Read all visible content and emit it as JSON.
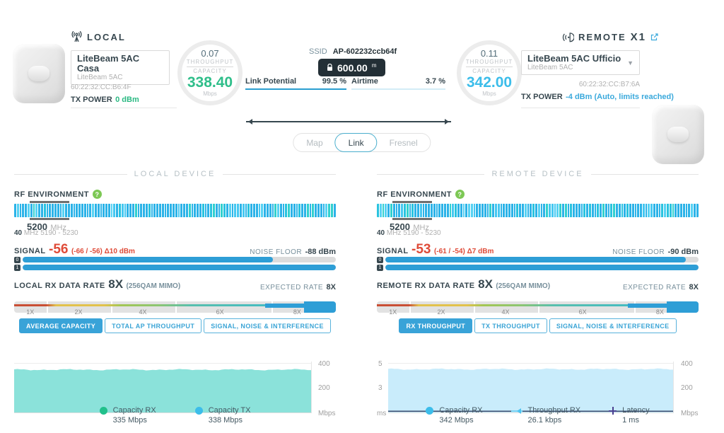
{
  "top": {
    "local": {
      "label": "LOCAL",
      "name": "LiteBeam 5AC Casa",
      "model": "LiteBeam 5AC",
      "mac": "60:22:32:CC:B6:4F",
      "tx_label": "TX POWER",
      "tx_value": "0 dBm"
    },
    "local_gauge": {
      "throughput": "0.07",
      "throughput_label": "THROUGHPUT",
      "capacity_label": "CAPACITY",
      "capacity": "338.40",
      "unit": "Mbps"
    },
    "link": {
      "ssid_label": "SSID",
      "ssid": "AP-602232ccb64f",
      "distance": "600.00",
      "distance_unit": "m",
      "potential_label": "Link Potential",
      "potential_value": "99.5 %",
      "airtime_label": "Airtime",
      "airtime_value": "3.7 %"
    },
    "remote_gauge": {
      "throughput": "0.11",
      "throughput_label": "THROUGHPUT",
      "capacity_label": "CAPACITY",
      "capacity": "342.00",
      "unit": "Mbps"
    },
    "remote": {
      "label": "REMOTE",
      "count": "X1",
      "name": "LiteBeam 5AC Ufficio",
      "model": "LiteBeam 5AC",
      "mac": "60:22:32:CC:B7:6A",
      "tx_label": "TX POWER",
      "tx_value": "-4 dBm (Auto, limits reached)"
    }
  },
  "tabs": [
    {
      "label": "Map",
      "active": false
    },
    {
      "label": "Link",
      "active": true
    },
    {
      "label": "Fresnel",
      "active": false
    }
  ],
  "local_device": {
    "title": "LOCAL DEVICE",
    "rf_label": "RF ENVIRONMENT",
    "freq": "5200",
    "freq_unit": "MHz",
    "bw": "40",
    "bw_range": "MHz 5190 - 5230",
    "signal_label": "SIGNAL",
    "signal": "-56",
    "signal_detail": "(-66 / -56) Δ10 dBm",
    "noise_label": "NOISE FLOOR",
    "noise": "-88 dBm",
    "chains": [
      80,
      100
    ],
    "rate_label": "LOCAL RX DATA RATE",
    "rate": "8X",
    "rate_detail": "(256QAM MIMO)",
    "expected_label": "EXPECTED RATE",
    "expected": "8X",
    "ticks": [
      "1X",
      "2X",
      "4X",
      "6X",
      "8X"
    ],
    "buttons": [
      {
        "label": "AVERAGE CAPACITY",
        "active": true
      },
      {
        "label": "TOTAL AP THROUGHPUT",
        "active": false
      },
      {
        "label": "SIGNAL, NOISE & INTERFERENCE",
        "active": false
      }
    ],
    "chart": {
      "type": "area",
      "ymax": 400,
      "avg": 336,
      "fill": "#8be2da",
      "right_axis": [
        "400",
        "200",
        "Mbps"
      ]
    },
    "legend": [
      {
        "name": "Capacity RX",
        "value": "335 Mbps",
        "color": "#21c08b",
        "marker": "dot"
      },
      {
        "name": "Capacity TX",
        "value": "338 Mbps",
        "color": "#3cbdea",
        "marker": "dot"
      }
    ]
  },
  "remote_device": {
    "title": "REMOTE DEVICE",
    "rf_label": "RF ENVIRONMENT",
    "freq": "5200",
    "freq_unit": "MHz",
    "bw": "40",
    "bw_range": "MHz 5190 - 5230",
    "signal_label": "SIGNAL",
    "signal": "-53",
    "signal_detail": "(-61 / -54) Δ7 dBm",
    "noise_label": "NOISE FLOOR",
    "noise": "-90 dBm",
    "chains": [
      96,
      100
    ],
    "rate_label": "REMOTE RX DATA RATE",
    "rate": "8X",
    "rate_detail": "(256QAM MIMO)",
    "expected_label": "EXPECTED RATE",
    "expected": "8X",
    "ticks": [
      "1X",
      "2X",
      "4X",
      "6X",
      "8X"
    ],
    "buttons": [
      {
        "label": "RX THROUGHPUT",
        "active": true
      },
      {
        "label": "TX THROUGHPUT",
        "active": false
      },
      {
        "label": "SIGNAL, NOISE & INTERFERENCE",
        "active": false
      }
    ],
    "chart": {
      "type": "area",
      "ymax": 400,
      "avg": 340,
      "fill": "#c9ecfb",
      "latency_color": "#3a4a6b",
      "left_axis": [
        "5",
        "3",
        "ms"
      ],
      "right_axis": [
        "400",
        "200",
        "Mbps"
      ]
    },
    "legend": [
      {
        "name": "Capacity RX",
        "value": "342 Mbps",
        "color": "#3cbdea",
        "marker": "dot"
      },
      {
        "name": "Throughput RX",
        "value": "26.1 kbps",
        "color": "#79d2f2",
        "marker": "line"
      },
      {
        "name": "Latency",
        "value": "1 ms",
        "color": "#4a3f8f",
        "marker": "plus"
      }
    ]
  }
}
